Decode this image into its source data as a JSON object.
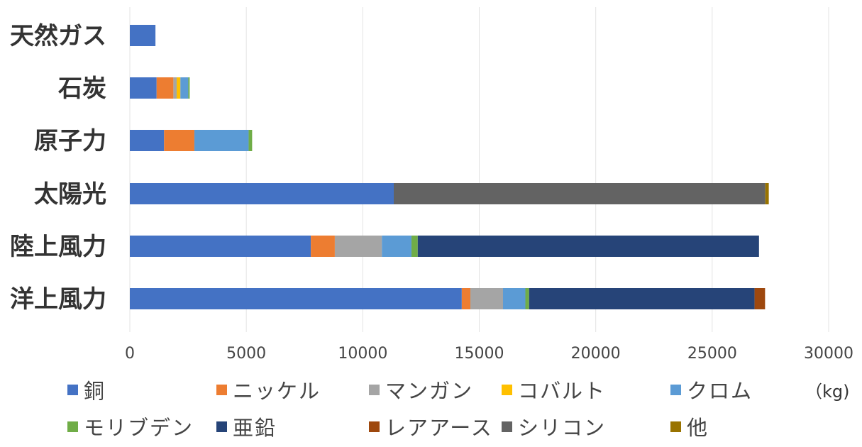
{
  "chart_data": {
    "type": "bar",
    "orientation": "horizontal",
    "stacked": true,
    "categories": [
      "天然ガス",
      "石炭",
      "原子力",
      "太陽光",
      "陸上風力",
      "洋上風力"
    ],
    "series": [
      {
        "name": "銅",
        "color": "#4472C4",
        "values": [
          1100,
          1150,
          1470,
          11330,
          7770,
          14250
        ]
      },
      {
        "name": "ニッケル",
        "color": "#ED7D31",
        "values": [
          0,
          720,
          1300,
          0,
          1030,
          370
        ]
      },
      {
        "name": "マンガン",
        "color": "#A5A5A5",
        "values": [
          0,
          140,
          0,
          0,
          2020,
          1400
        ]
      },
      {
        "name": "コバルト",
        "color": "#FFC000",
        "values": [
          0,
          160,
          0,
          0,
          0,
          0
        ]
      },
      {
        "name": "クロム",
        "color": "#5B9BD5",
        "values": [
          0,
          340,
          2330,
          0,
          1270,
          960
        ]
      },
      {
        "name": "モリブデン",
        "color": "#70AD47",
        "values": [
          0,
          60,
          150,
          0,
          270,
          160
        ]
      },
      {
        "name": "亜鉛",
        "color": "#264478",
        "values": [
          0,
          0,
          0,
          0,
          14650,
          9680
        ]
      },
      {
        "name": "レアアース",
        "color": "#9E480E",
        "values": [
          0,
          0,
          0,
          0,
          0,
          450
        ]
      },
      {
        "name": "シリコン",
        "color": "#636363",
        "values": [
          0,
          0,
          0,
          15950,
          0,
          0
        ]
      },
      {
        "name": "他",
        "color": "#997300",
        "values": [
          0,
          0,
          0,
          150,
          0,
          0
        ]
      }
    ],
    "xlim": [
      0,
      30000
    ],
    "ticks": [
      "0",
      "5000",
      "10000",
      "15000",
      "20000",
      "25000",
      "30000"
    ],
    "unit": "（kg)",
    "grid": true,
    "legend_position": "bottom"
  }
}
